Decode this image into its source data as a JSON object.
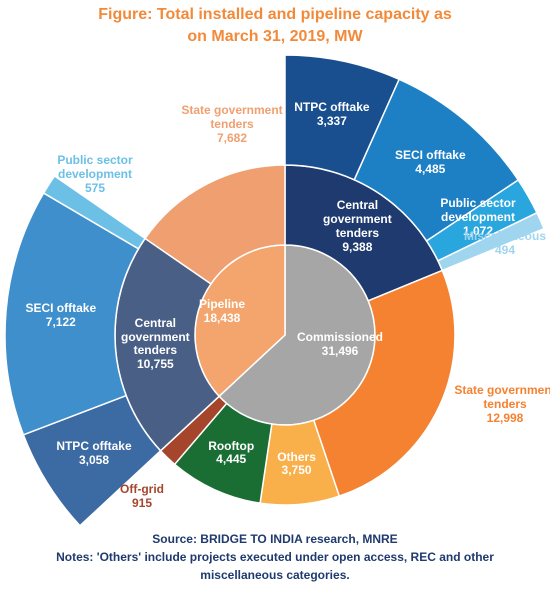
{
  "chart_data": {
    "type": "sunburst",
    "title": "Figure: Total installed and pipeline capacity as on March 31, 2019, MW",
    "source": "Source: BRIDGE TO INDIA research, MNRE",
    "notes": "Notes: 'Others' include projects executed under open access, REC and other miscellaneous categories.",
    "nodes": [
      {
        "name": "Commissioned",
        "value": 31496,
        "value_label": "31,496",
        "color": "#a6a6a6",
        "children": [
          {
            "name": "Central government tenders",
            "value": 9388,
            "value_label": "9,388",
            "color": "#1f3a6e",
            "children": [
              {
                "name": "NTPC offtake",
                "value": 3337,
                "value_label": "3,337",
                "color": "#1a4f8f"
              },
              {
                "name": "SECI offtake",
                "value": 4485,
                "value_label": "4,485",
                "color": "#1d7fc4"
              },
              {
                "name": "Public sector development",
                "value": 1072,
                "value_label": "1,072",
                "color": "#2aa6de"
              },
              {
                "name": "Miscellaneous",
                "value": 494,
                "value_label": "494",
                "color": "#9fd5ef"
              }
            ]
          },
          {
            "name": "State government tenders",
            "value": 12998,
            "value_label": "12,998",
            "color": "#f58231"
          },
          {
            "name": "Others",
            "value": 3750,
            "value_label": "3,750",
            "color": "#f9b04a"
          },
          {
            "name": "Rooftop",
            "value": 4445,
            "value_label": "4,445",
            "color": "#1a6e34"
          },
          {
            "name": "Off-grid",
            "value": 915,
            "value_label": "915",
            "color": "#a5462c"
          }
        ]
      },
      {
        "name": "Pipeline",
        "value": 18438,
        "value_label": "18,438",
        "color": "#f4a56e",
        "children": [
          {
            "name": "Central government tenders",
            "value": 10755,
            "value_label": "10,755",
            "color": "#4a5f86",
            "children": [
              {
                "name": "NTPC offtake",
                "value": 3058,
                "value_label": "3,058",
                "color": "#3c6aa3"
              },
              {
                "name": "SECI offtake",
                "value": 7122,
                "value_label": "7,122",
                "color": "#3f8fcc"
              },
              {
                "name": "Public sector development",
                "value": 575,
                "value_label": "575",
                "color": "#6cc0e6"
              }
            ]
          },
          {
            "name": "State government tenders",
            "value": 7682,
            "value_label": "7,682",
            "color": "#f0a070"
          }
        ]
      }
    ]
  }
}
